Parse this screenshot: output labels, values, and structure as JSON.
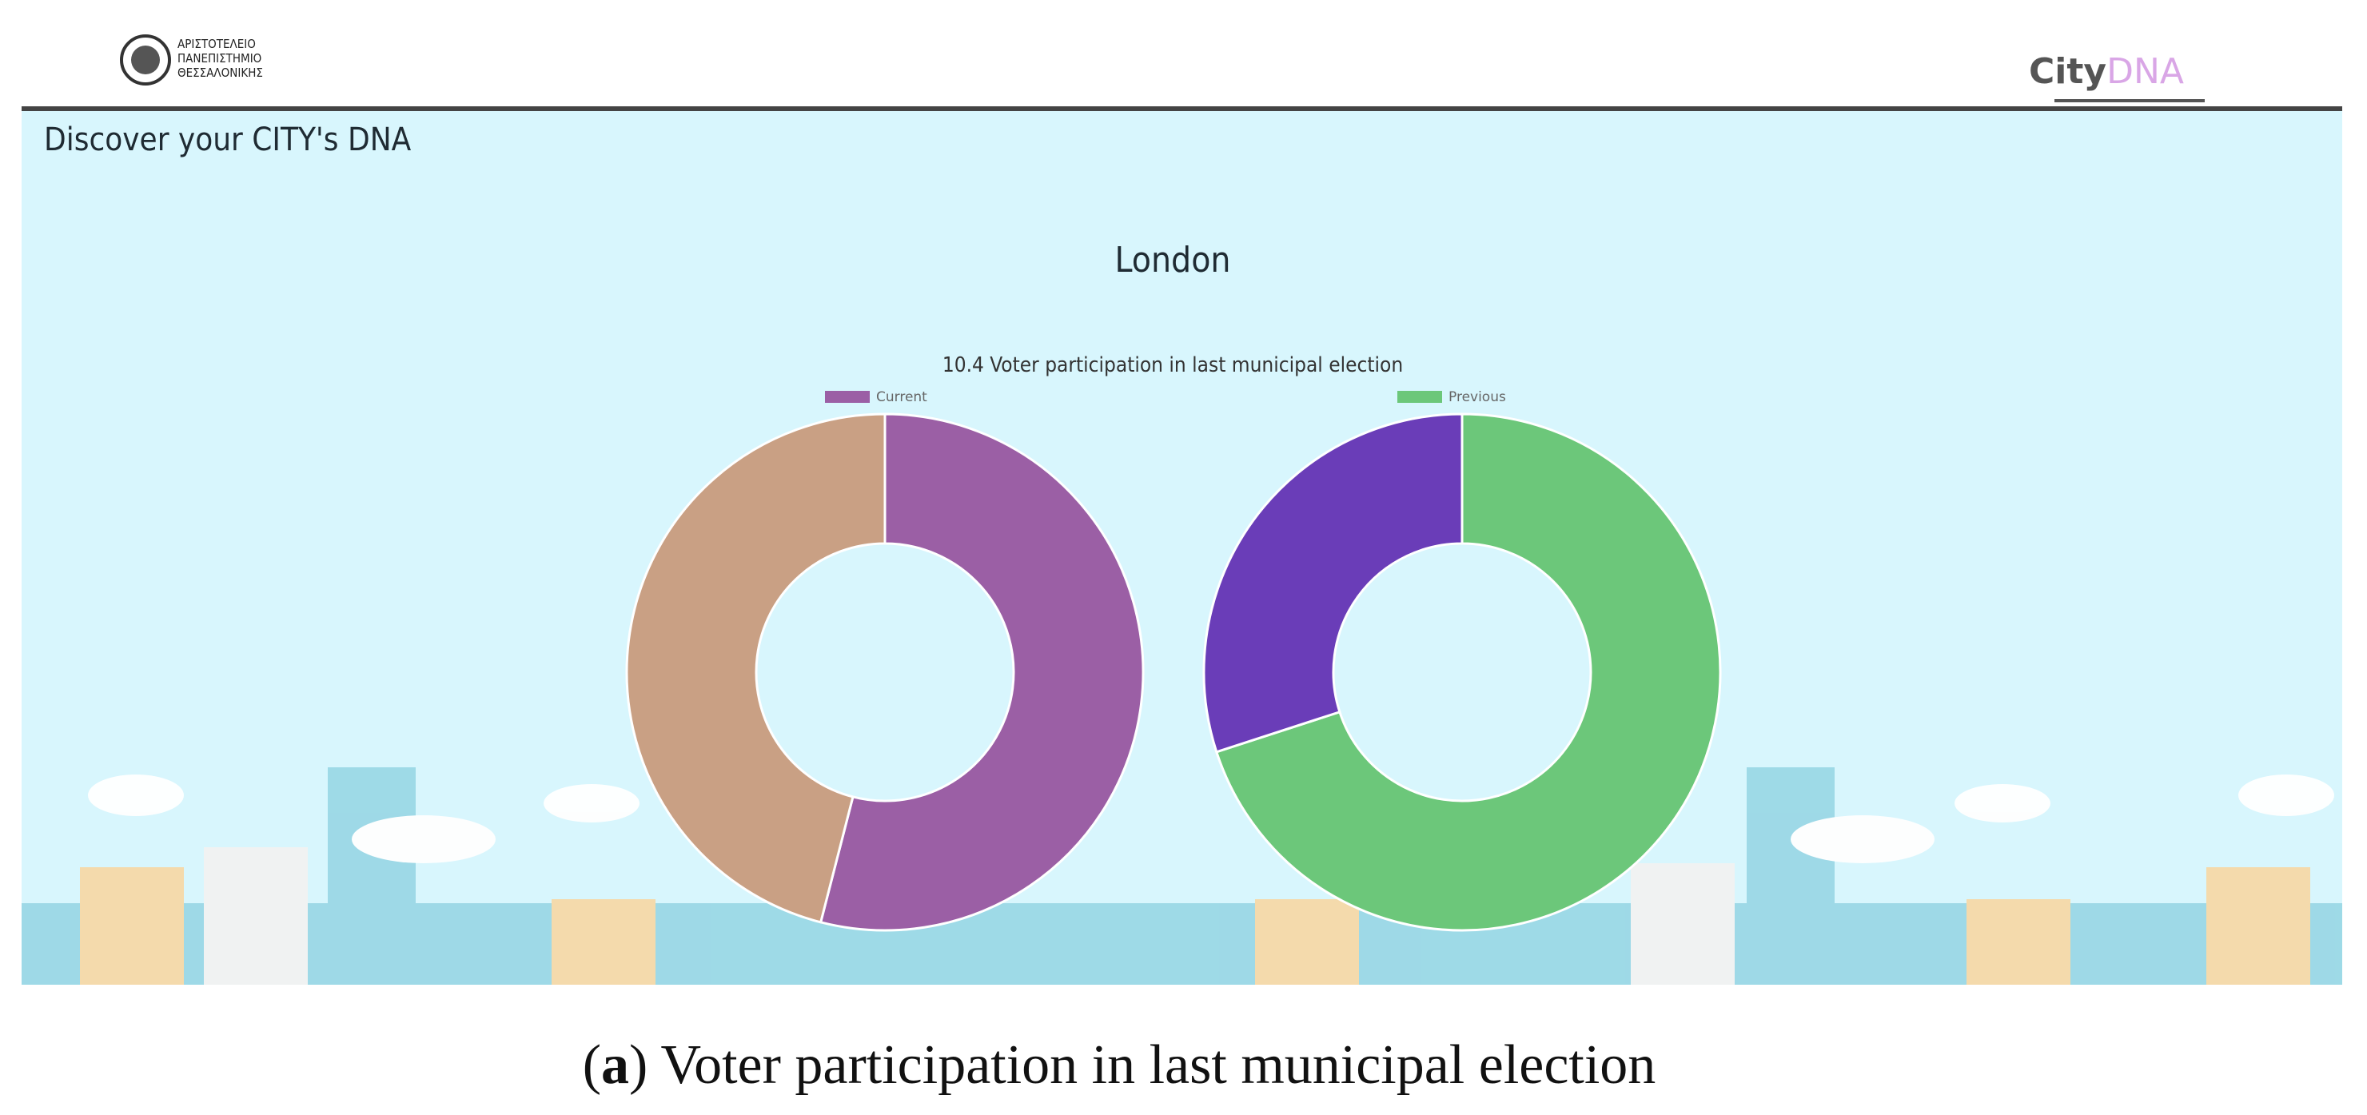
{
  "header": {
    "university": [
      "ΑΡΙΣΤΟΤΕΛΕΙΟ",
      "ΠΑΝΕΠΙΣΤΗΜΙΟ",
      "ΘΕΣΣΑΛΟΝΙΚΗΣ"
    ],
    "brand": [
      "City",
      "DNA"
    ]
  },
  "page": {
    "title": "Discover your CITY's DNA",
    "city": "London"
  },
  "chart_data": {
    "type": "doughnut",
    "title": "10.4 Voter participation in last municipal election",
    "series": [
      {
        "name": "Current",
        "color": "#9b5fa5",
        "values": [
          54,
          46
        ],
        "colors": [
          "#9b5fa5",
          "#c9a084"
        ]
      },
      {
        "name": "Previous",
        "color": "#6cc77a",
        "values": [
          70,
          30
        ],
        "colors": [
          "#6cc77a",
          "#6a3db8"
        ]
      }
    ]
  },
  "caption": [
    "(",
    "a",
    ") Voter participation in last municipal election"
  ]
}
